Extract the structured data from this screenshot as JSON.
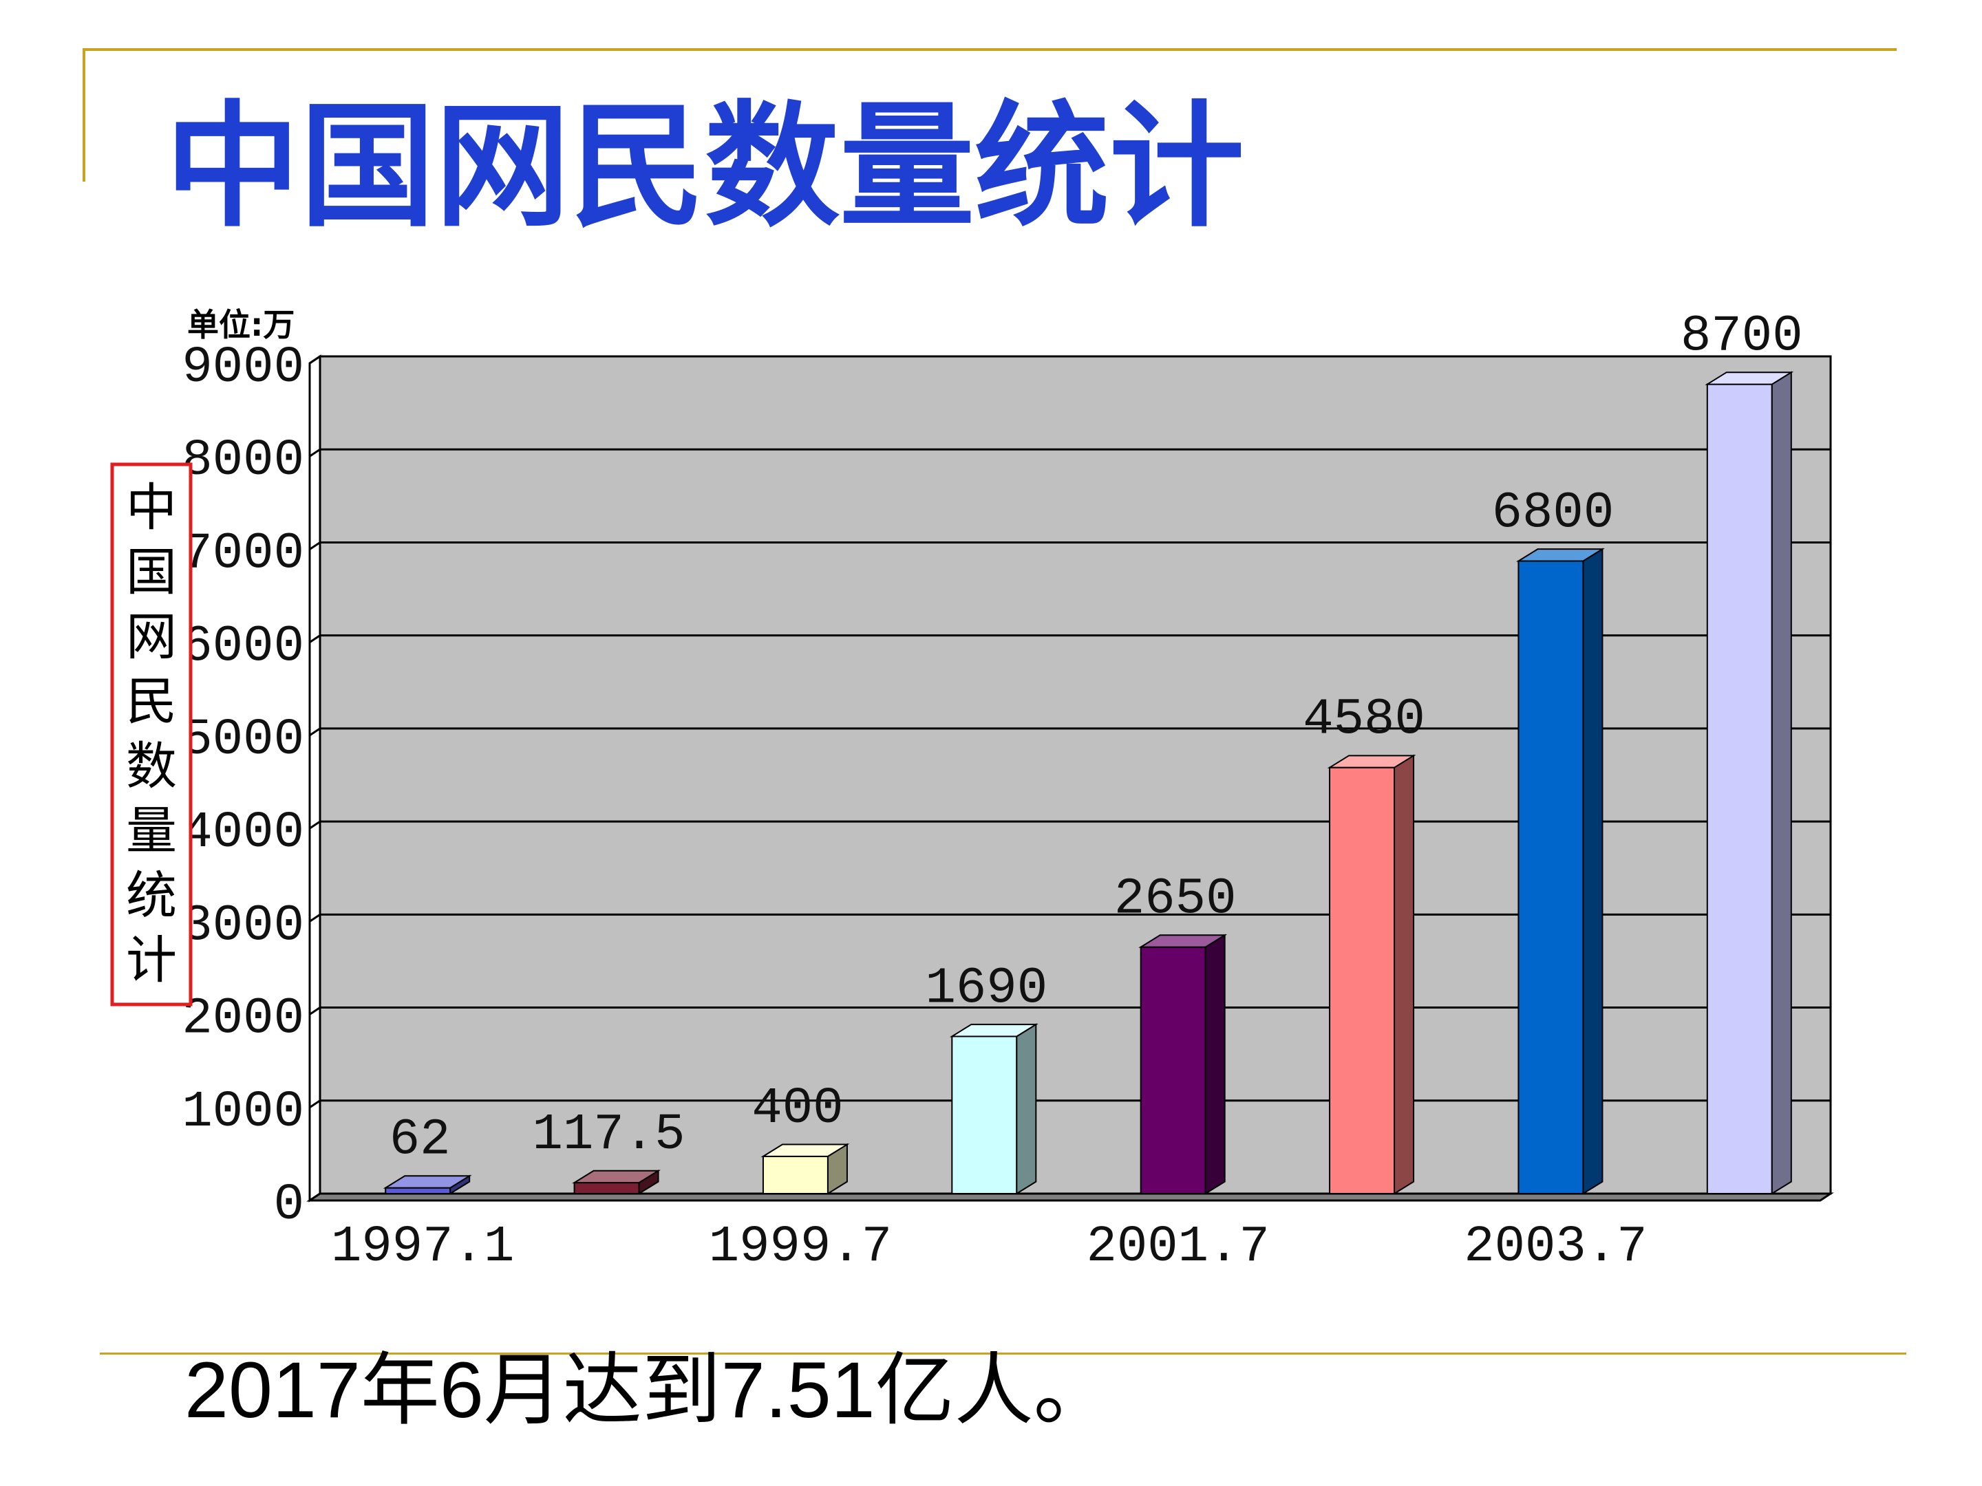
{
  "slide": {
    "title": "中国网民数量统计",
    "footnote": "2017年6月达到7.51亿人。"
  },
  "colors": {
    "title": "#1f3fd2",
    "rule": "#c8a321",
    "plot_background": "#c0c0c0",
    "ylabel_border": "#e02020"
  },
  "chart_data": {
    "type": "bar",
    "unit_label": "单位:万",
    "ylabel": "中国网民数量统计",
    "xlabel": "",
    "ylim": [
      0,
      9000
    ],
    "yticks": [
      0,
      1000,
      2000,
      3000,
      4000,
      5000,
      6000,
      7000,
      8000,
      9000
    ],
    "grid": true,
    "legend": "none",
    "categories": [
      "1997.1",
      "",
      "1999.7",
      "",
      "2001.7",
      "",
      "2003.7",
      ""
    ],
    "xtick_labels": [
      "1997.1",
      "1999.7",
      "2001.7",
      "2003.7"
    ],
    "values": [
      62,
      117.5,
      400,
      1690,
      2650,
      4580,
      6800,
      8700
    ],
    "value_labels": [
      "62",
      "117.5",
      "400",
      "1690",
      "2650",
      "4580",
      "6800",
      "8700"
    ],
    "bar_colors": [
      "#5b5bd6",
      "#7a2035",
      "#ffffcc",
      "#ccffff",
      "#660066",
      "#ff8080",
      "#0066cc",
      "#ccccff"
    ]
  }
}
